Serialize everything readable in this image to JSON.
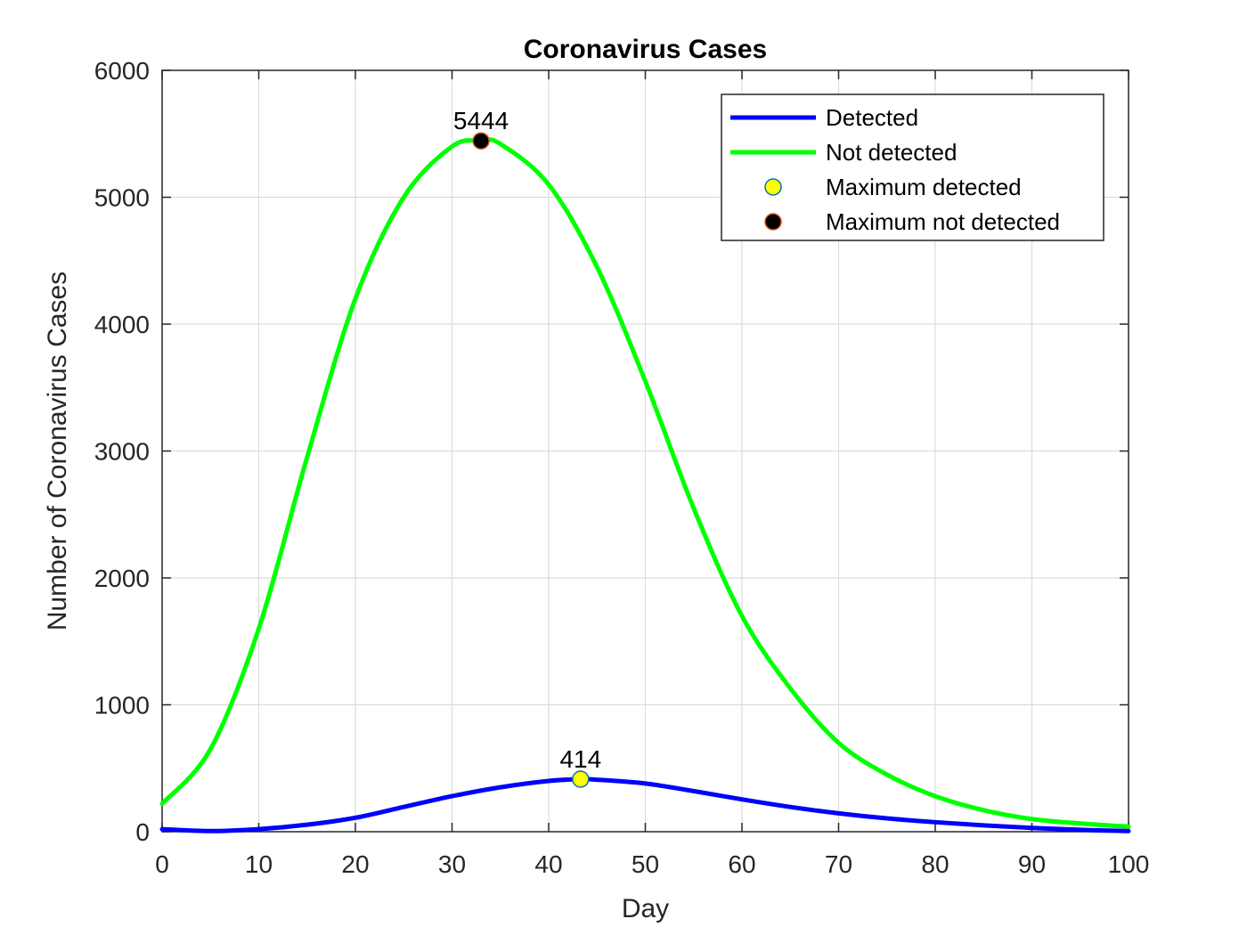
{
  "chart_data": {
    "type": "line",
    "title": "Coronavirus Cases",
    "xlabel": "Day",
    "ylabel": "Number of Coronavirus Cases",
    "xlim": [
      0,
      100
    ],
    "ylim": [
      0,
      6000
    ],
    "xticks": [
      0,
      10,
      20,
      30,
      40,
      50,
      60,
      70,
      80,
      90,
      100
    ],
    "yticks": [
      0,
      1000,
      2000,
      3000,
      4000,
      5000,
      6000
    ],
    "grid": true,
    "legend_position": "top-right",
    "series": [
      {
        "name": "Detected",
        "color": "#0000ff",
        "x": [
          0,
          5,
          10,
          15,
          20,
          25,
          30,
          35,
          40,
          43.3,
          45,
          50,
          55,
          60,
          65,
          70,
          75,
          80,
          85,
          90,
          95,
          100
        ],
        "y": [
          20,
          5,
          20,
          55,
          110,
          195,
          280,
          350,
          400,
          414,
          410,
          380,
          320,
          255,
          195,
          145,
          105,
          75,
          50,
          30,
          15,
          5
        ]
      },
      {
        "name": "Not detected",
        "color": "#00ff00",
        "x": [
          0,
          5,
          10,
          15,
          20,
          25,
          30,
          33,
          35,
          40,
          45,
          50,
          55,
          60,
          65,
          70,
          75,
          80,
          85,
          90,
          95,
          100
        ],
        "y": [
          220,
          650,
          1600,
          2950,
          4200,
          5000,
          5400,
          5444,
          5420,
          5100,
          4450,
          3550,
          2550,
          1700,
          1130,
          700,
          450,
          280,
          170,
          100,
          65,
          40
        ]
      }
    ],
    "markers": [
      {
        "name": "Maximum detected",
        "x": 43.3,
        "y": 414,
        "fill": "#ffff00",
        "edge": "#0072bd",
        "label": "414"
      },
      {
        "name": "Maximum not detected",
        "x": 33,
        "y": 5444,
        "fill": "#000000",
        "edge": "#d95319",
        "label": "5444"
      }
    ],
    "legend": [
      {
        "label": "Detected",
        "kind": "line",
        "color": "#0000ff"
      },
      {
        "label": "Not detected",
        "kind": "line",
        "color": "#00ff00"
      },
      {
        "label": "Maximum detected",
        "kind": "marker",
        "fill": "#ffff00",
        "edge": "#0072bd"
      },
      {
        "label": "Maximum not detected",
        "kind": "marker",
        "fill": "#000000",
        "edge": "#d95319"
      }
    ]
  }
}
